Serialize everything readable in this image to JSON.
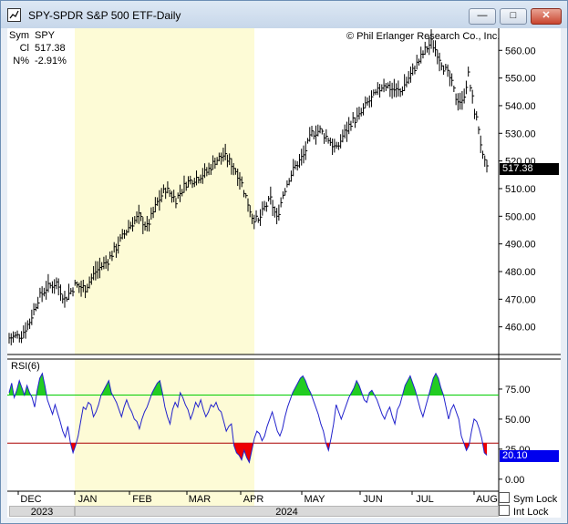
{
  "window": {
    "title": "SPY-SPDR S&P 500 ETF-Daily",
    "buttons": {
      "minimize": "—",
      "maximize": "□",
      "close": "✕"
    }
  },
  "info": {
    "rows": [
      {
        "label": "Sym",
        "value": "SPY"
      },
      {
        "label": "Cl",
        "value": "517.38"
      },
      {
        "label": "N%",
        "value": "-2.91%"
      }
    ]
  },
  "copyright": "© Phil Erlanger Research Co., Inc.",
  "price_axis": {
    "ticks": [
      "560.00",
      "550.00",
      "540.00",
      "530.00",
      "520.00",
      "510.00",
      "500.00",
      "490.00",
      "480.00",
      "470.00",
      "460.00"
    ],
    "current": "517.38"
  },
  "rsi": {
    "label": "RSI(6)",
    "ticks": [
      "75.00",
      "50.00",
      "25.00",
      "0.00"
    ],
    "current": "20.10",
    "upper": 70,
    "lower": 30
  },
  "x_axis": {
    "months": [
      "DEC",
      "JAN",
      "FEB",
      "MAR",
      "APR",
      "MAY",
      "JUN",
      "JUL",
      "AUG"
    ],
    "years": [
      "2023",
      "2024"
    ]
  },
  "controls": {
    "sym_lock": "Sym Lock",
    "int_lock": "Int Lock"
  },
  "colors": {
    "shade_bg": "#fdfbd6",
    "overbought_fill": "#22cc22",
    "oversold_fill": "#ee0000",
    "upper_line": "#00cc00",
    "lower_line": "#aa0000",
    "rsi_line": "#2222cc",
    "rsi_badge": "#0000ee"
  },
  "chart_data": [
    {
      "type": "bar",
      "title": "SPY-SPDR S&P 500 ETF-Daily",
      "ylim": [
        450,
        568
      ],
      "x_labels": [
        "DEC",
        "JAN",
        "FEB",
        "MAR",
        "APR",
        "MAY",
        "JUN",
        "JUL",
        "AUG"
      ],
      "anchors": [
        [
          0,
          456
        ],
        [
          6,
          457
        ],
        [
          10,
          462
        ],
        [
          14,
          470
        ],
        [
          18,
          474
        ],
        [
          23,
          476
        ],
        [
          27,
          470
        ],
        [
          32,
          475
        ],
        [
          37,
          474
        ],
        [
          42,
          480
        ],
        [
          48,
          484
        ],
        [
          53,
          490
        ],
        [
          58,
          496
        ],
        [
          63,
          500
        ],
        [
          67,
          496
        ],
        [
          72,
          505
        ],
        [
          76,
          510
        ],
        [
          81,
          506
        ],
        [
          86,
          512
        ],
        [
          91,
          514
        ],
        [
          96,
          516
        ],
        [
          100,
          520
        ],
        [
          104,
          522
        ],
        [
          108,
          519
        ],
        [
          112,
          514
        ],
        [
          115,
          507
        ],
        [
          118,
          500
        ],
        [
          121,
          498
        ],
        [
          124,
          503
        ],
        [
          127,
          506
        ],
        [
          130,
          499
        ],
        [
          133,
          508
        ],
        [
          136,
          514
        ],
        [
          139,
          518
        ],
        [
          143,
          522
        ],
        [
          147,
          530
        ],
        [
          151,
          531
        ],
        [
          155,
          528
        ],
        [
          159,
          524
        ],
        [
          162,
          529
        ],
        [
          166,
          534
        ],
        [
          170,
          536
        ],
        [
          174,
          541
        ],
        [
          178,
          544
        ],
        [
          182,
          548
        ],
        [
          186,
          546
        ],
        [
          190,
          545
        ],
        [
          194,
          550
        ],
        [
          198,
          555
        ],
        [
          202,
          560
        ],
        [
          205,
          563
        ],
        [
          208,
          559
        ],
        [
          211,
          554
        ],
        [
          214,
          550
        ],
        [
          217,
          543
        ],
        [
          220,
          541
        ],
        [
          223,
          551
        ],
        [
          226,
          538
        ],
        [
          228,
          532
        ],
        [
          230,
          521
        ],
        [
          232,
          517
        ]
      ],
      "last_close": 517.38
    },
    {
      "type": "area",
      "title": "RSI(6)",
      "ylim": [
        -10,
        100
      ],
      "thresholds": [
        70,
        30
      ],
      "values": [
        72,
        80,
        68,
        74,
        82,
        76,
        70,
        78,
        72,
        68,
        60,
        74,
        84,
        88,
        78,
        66,
        60,
        54,
        62,
        55,
        48,
        40,
        35,
        44,
        30,
        22,
        28,
        36,
        48,
        60,
        58,
        64,
        62,
        52,
        56,
        62,
        70,
        74,
        78,
        82,
        72,
        68,
        64,
        58,
        52,
        60,
        66,
        60,
        56,
        50,
        48,
        42,
        50,
        56,
        60,
        66,
        72,
        76,
        80,
        82,
        72,
        60,
        52,
        46,
        58,
        64,
        60,
        72,
        68,
        62,
        58,
        50,
        56,
        64,
        60,
        66,
        58,
        52,
        56,
        62,
        60,
        64,
        58,
        56,
        48,
        40,
        44,
        46,
        28,
        22,
        20,
        16,
        24,
        18,
        14,
        24,
        34,
        40,
        38,
        32,
        36,
        44,
        50,
        56,
        48,
        40,
        36,
        42,
        52,
        60,
        66,
        72,
        76,
        80,
        84,
        86,
        82,
        76,
        72,
        66,
        60,
        54,
        46,
        40,
        30,
        24,
        34,
        46,
        62,
        56,
        50,
        56,
        62,
        68,
        72,
        76,
        82,
        78,
        72,
        66,
        64,
        72,
        74,
        70,
        66,
        60,
        54,
        50,
        56,
        60,
        52,
        46,
        58,
        62,
        70,
        78,
        82,
        86,
        80,
        74,
        66,
        58,
        52,
        60,
        68,
        76,
        84,
        88,
        84,
        76,
        70,
        60,
        50,
        58,
        62,
        56,
        50,
        36,
        30,
        24,
        28,
        40,
        50,
        48,
        42,
        34,
        22,
        20
      ],
      "last": 20.1
    }
  ]
}
